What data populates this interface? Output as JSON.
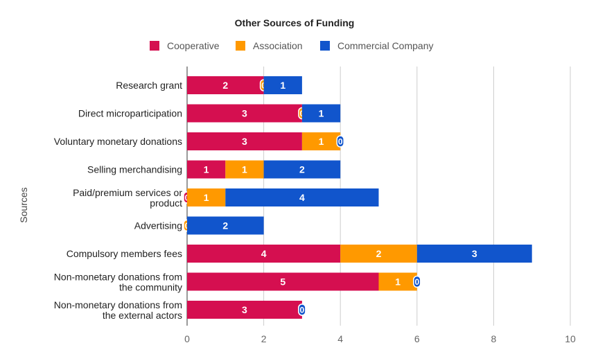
{
  "chart_data": {
    "type": "bar",
    "orientation": "horizontal",
    "stacked": true,
    "title": "Other Sources of Funding",
    "xlabel": "",
    "ylabel": "Sources",
    "xlim": [
      0,
      10
    ],
    "xticks": [
      "0",
      "2",
      "4",
      "6",
      "8",
      "10"
    ],
    "grid": true,
    "legend_position": "top",
    "categories": [
      [
        "Research grant"
      ],
      [
        "Direct microparticipation"
      ],
      [
        "Voluntary monetary donations"
      ],
      [
        "Selling merchandising"
      ],
      [
        "Paid/premium services or",
        "product"
      ],
      [
        "Advertising"
      ],
      [
        "Compulsory members fees"
      ],
      [
        "Non-monetary donations from",
        "the community"
      ],
      [
        "Non-monetary donations from",
        "the external actors"
      ]
    ],
    "series": [
      {
        "name": "Cooperative",
        "color": "#d50f50",
        "values": [
          2,
          3,
          3,
          1,
          0,
          0,
          4,
          5,
          3
        ]
      },
      {
        "name": "Association",
        "color": "#ff9900",
        "values": [
          0,
          0,
          1,
          1,
          1,
          0,
          2,
          1,
          0
        ]
      },
      {
        "name": "Commercial Company",
        "color": "#1155cc",
        "values": [
          1,
          1,
          0,
          2,
          4,
          2,
          3,
          0,
          0
        ]
      }
    ]
  }
}
